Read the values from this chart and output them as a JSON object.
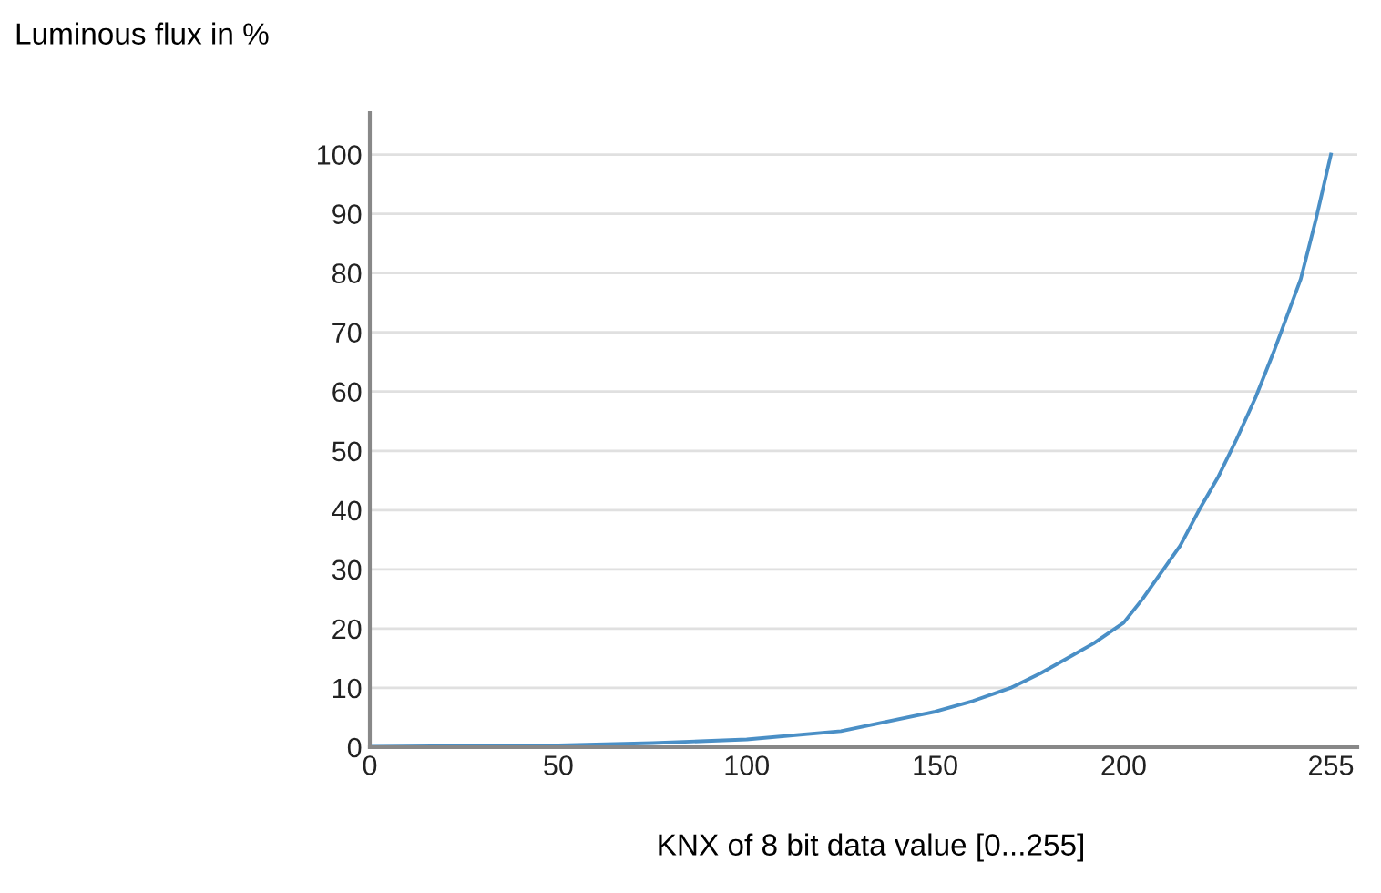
{
  "chart_data": {
    "type": "line",
    "ylabel": "Luminous flux in %",
    "xlabel": "KNX of 8 bit data value [0...255]",
    "x": [
      0,
      25,
      50,
      75,
      100,
      125,
      150,
      160,
      170,
      178,
      185,
      192,
      200,
      205,
      210,
      215,
      220,
      225,
      230,
      235,
      240,
      247,
      251,
      255
    ],
    "series": [
      {
        "color": "#4a8fc6",
        "values": [
          0.1,
          0.2,
          0.3,
          0.7,
          1.3,
          2.7,
          6,
          7.8,
          10,
          12.5,
          15,
          17.5,
          21,
          25,
          29.5,
          34,
          40,
          45.5,
          52,
          59,
          67,
          79,
          89,
          100
        ]
      }
    ],
    "xlim": [
      0,
      262
    ],
    "ylim": [
      0,
      107
    ],
    "xticks": [
      0,
      50,
      100,
      150,
      200,
      255
    ],
    "yticks": [
      0,
      10,
      20,
      30,
      40,
      50,
      60,
      70,
      80,
      90,
      100
    ],
    "grid": "y",
    "legend": false,
    "marker": "none",
    "line_style": "solid"
  }
}
